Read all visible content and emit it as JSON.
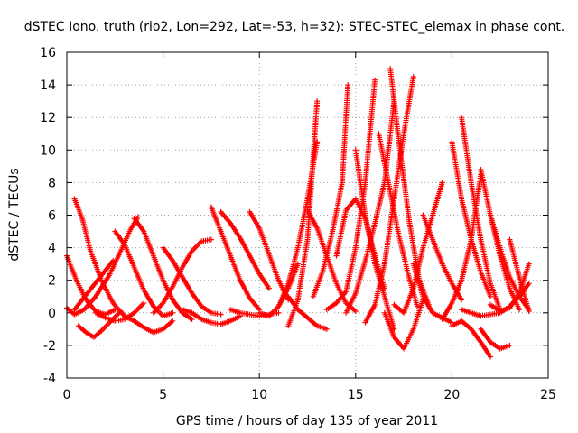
{
  "chart_data": {
    "type": "scatter",
    "title": "dSTEC Iono. truth (rio2, Lon=292, Lat=-53, h=32): STEC-STEC_elemax in phase cont.",
    "xlabel": "GPS time / hours of day 135 of year 2011",
    "ylabel": "dSTEC  / TECUs",
    "xlim": [
      0,
      25
    ],
    "ylim": [
      -4,
      16
    ],
    "xticks": [
      0,
      5,
      10,
      15,
      20,
      25
    ],
    "yticks": [
      -4,
      -2,
      0,
      2,
      4,
      6,
      8,
      10,
      12,
      14,
      16
    ],
    "grid": true,
    "marker": "+",
    "color": "#ff0000",
    "series": [
      {
        "x": [
          0.0,
          0.5,
          1.0,
          1.5,
          2.0,
          2.5
        ],
        "y": [
          3.5,
          2.0,
          0.8,
          0.1,
          -0.1,
          0.2
        ]
      },
      {
        "x": [
          0.0,
          0.4,
          0.9,
          1.5,
          2.2,
          2.8,
          3.3,
          3.7
        ],
        "y": [
          0.3,
          -0.1,
          0.2,
          1.0,
          2.3,
          3.8,
          5.1,
          5.9
        ]
      },
      {
        "x": [
          0.4,
          0.8,
          1.2,
          1.8,
          2.4,
          3.0
        ],
        "y": [
          7.0,
          5.8,
          3.9,
          2.0,
          0.6,
          -0.2
        ]
      },
      {
        "x": [
          0.6,
          1.0,
          1.4,
          1.8,
          2.3,
          2.8
        ],
        "y": [
          -0.8,
          -1.2,
          -1.5,
          -1.1,
          -0.5,
          0.1
        ]
      },
      {
        "x": [
          0.4,
          0.8,
          1.2,
          1.6,
          2.0,
          2.4
        ],
        "y": [
          0.2,
          0.8,
          1.4,
          2.0,
          2.6,
          3.2
        ]
      },
      {
        "x": [
          2.5,
          3.0,
          3.5,
          4.0,
          4.5,
          5.0,
          5.5
        ],
        "y": [
          5.0,
          4.2,
          2.8,
          1.4,
          0.4,
          -0.2,
          0.0
        ]
      },
      {
        "x": [
          1.5,
          2.0,
          2.5,
          3.0,
          3.5,
          4.0
        ],
        "y": [
          0.0,
          -0.3,
          -0.5,
          -0.4,
          0.0,
          0.6
        ]
      },
      {
        "x": [
          3.5,
          4.0,
          4.5,
          5.0,
          5.5,
          6.0,
          6.5
        ],
        "y": [
          5.8,
          5.0,
          3.5,
          2.0,
          0.8,
          0.0,
          -0.4
        ]
      },
      {
        "x": [
          3.0,
          3.5,
          4.0,
          4.5,
          5.0,
          5.5
        ],
        "y": [
          -0.2,
          -0.5,
          -0.9,
          -1.2,
          -1.0,
          -0.5
        ]
      },
      {
        "x": [
          4.5,
          5.0,
          5.5,
          6.0,
          6.5,
          7.0,
          7.5
        ],
        "y": [
          0.0,
          0.6,
          1.6,
          2.8,
          3.8,
          4.4,
          4.5
        ]
      },
      {
        "x": [
          5.0,
          5.5,
          6.0,
          6.5,
          7.0,
          7.5,
          8.0
        ],
        "y": [
          4.0,
          3.2,
          2.2,
          1.2,
          0.4,
          0.0,
          -0.1
        ]
      },
      {
        "x": [
          6.0,
          6.5,
          7.0,
          7.5,
          8.0,
          8.5,
          9.0
        ],
        "y": [
          0.2,
          0.0,
          -0.4,
          -0.6,
          -0.7,
          -0.5,
          -0.2
        ]
      },
      {
        "x": [
          7.5,
          8.0,
          8.5,
          9.0,
          9.5,
          10.0
        ],
        "y": [
          6.5,
          5.0,
          3.5,
          2.0,
          0.9,
          0.2
        ]
      },
      {
        "x": [
          8.0,
          8.5,
          9.0,
          9.5,
          10.0,
          10.5
        ],
        "y": [
          6.2,
          5.5,
          4.6,
          3.5,
          2.4,
          1.5
        ]
      },
      {
        "x": [
          8.5,
          9.0,
          9.5,
          10.0,
          10.5,
          11.0
        ],
        "y": [
          0.2,
          0.0,
          -0.1,
          -0.2,
          -0.1,
          0.0
        ]
      },
      {
        "x": [
          9.5,
          10.0,
          10.5,
          11.0,
          11.5
        ],
        "y": [
          6.2,
          5.2,
          3.6,
          2.0,
          0.8
        ]
      },
      {
        "x": [
          10.0,
          10.5,
          11.0,
          11.5,
          12.0
        ],
        "y": [
          0.0,
          -0.2,
          0.4,
          1.5,
          3.0
        ]
      },
      {
        "x": [
          11.0,
          11.5,
          12.0,
          12.5,
          13.0
        ],
        "y": [
          0.4,
          1.8,
          4.0,
          7.0,
          10.5
        ]
      },
      {
        "x": [
          11.5,
          12.0,
          12.5,
          13.0
        ],
        "y": [
          -0.8,
          0.8,
          4.5,
          13.0
        ]
      },
      {
        "x": [
          11.5,
          12.0,
          12.5,
          13.0,
          13.5
        ],
        "y": [
          1.0,
          0.2,
          -0.3,
          -0.8,
          -1.0
        ]
      },
      {
        "x": [
          12.5,
          13.0,
          13.5,
          14.0,
          14.5,
          15.0
        ],
        "y": [
          6.3,
          5.2,
          3.5,
          1.8,
          0.6,
          0.1
        ]
      },
      {
        "x": [
          12.8,
          13.3,
          13.8,
          14.3,
          14.6
        ],
        "y": [
          1.0,
          2.6,
          5.0,
          8.0,
          14.0
        ]
      },
      {
        "x": [
          13.5,
          14.0,
          14.5,
          15.0,
          15.5,
          16.0
        ],
        "y": [
          0.2,
          0.6,
          1.3,
          4.0,
          8.0,
          14.3
        ]
      },
      {
        "x": [
          14.0,
          14.5,
          15.0,
          15.5,
          16.0,
          16.5
        ],
        "y": [
          3.5,
          6.3,
          7.0,
          5.8,
          3.5,
          1.5
        ]
      },
      {
        "x": [
          14.5,
          15.0,
          15.5,
          16.0,
          16.5,
          17.0
        ],
        "y": [
          0.0,
          1.2,
          3.2,
          5.5,
          8.0,
          13.0
        ]
      },
      {
        "x": [
          15.0,
          15.5,
          16.0,
          16.5,
          17.0
        ],
        "y": [
          10.0,
          6.0,
          3.0,
          1.0,
          -1.0
        ]
      },
      {
        "x": [
          15.5,
          16.0,
          16.5,
          17.0,
          17.5,
          18.0
        ],
        "y": [
          -0.6,
          0.5,
          3.0,
          7.0,
          11.0,
          14.5
        ]
      },
      {
        "x": [
          16.2,
          16.7,
          17.2,
          17.7,
          18.2
        ],
        "y": [
          11.0,
          8.0,
          5.0,
          2.5,
          0.4
        ]
      },
      {
        "x": [
          16.5,
          17.0,
          17.5,
          18.0,
          18.5
        ],
        "y": [
          0.0,
          -1.5,
          -2.2,
          -1.0,
          0.8
        ]
      },
      {
        "x": [
          16.8,
          17.3,
          17.8,
          18.3,
          18.8
        ],
        "y": [
          15.0,
          10.0,
          5.5,
          2.0,
          0.5
        ]
      },
      {
        "x": [
          17.0,
          17.5,
          18.0,
          18.5,
          19.0,
          19.5
        ],
        "y": [
          0.5,
          0.0,
          1.5,
          4.0,
          6.0,
          8.0
        ]
      },
      {
        "x": [
          18.0,
          18.5,
          19.0,
          19.5,
          20.0
        ],
        "y": [
          3.0,
          1.0,
          0.0,
          -0.3,
          -0.6
        ]
      },
      {
        "x": [
          18.5,
          19.0,
          19.5,
          20.0,
          20.5
        ],
        "y": [
          6.0,
          4.5,
          3.0,
          1.8,
          0.8
        ]
      },
      {
        "x": [
          19.5,
          20.0,
          20.5,
          21.0,
          21.5
        ],
        "y": [
          -0.4,
          0.6,
          2.0,
          4.5,
          8.5
        ]
      },
      {
        "x": [
          20.0,
          20.5,
          21.0,
          21.5,
          22.0
        ],
        "y": [
          10.5,
          7.0,
          4.5,
          2.5,
          1.0
        ]
      },
      {
        "x": [
          20.5,
          21.0,
          21.5,
          22.0,
          22.5
        ],
        "y": [
          12.0,
          8.0,
          4.5,
          1.8,
          0.2
        ]
      },
      {
        "x": [
          20.0,
          20.5,
          21.0,
          21.5,
          22.0
        ],
        "y": [
          -0.8,
          -0.5,
          -1.0,
          -1.8,
          -2.7
        ]
      },
      {
        "x": [
          21.5,
          22.0,
          22.5,
          23.0
        ],
        "y": [
          -1.0,
          -1.8,
          -2.2,
          -2.0
        ]
      },
      {
        "x": [
          21.5,
          22.0,
          22.5,
          23.0,
          23.5
        ],
        "y": [
          8.8,
          6.0,
          3.5,
          1.5,
          0.2
        ]
      },
      {
        "x": [
          22.0,
          22.5,
          23.0,
          23.5,
          24.0
        ],
        "y": [
          6.0,
          4.0,
          2.2,
          1.0,
          0.2
        ]
      },
      {
        "x": [
          22.0,
          22.5,
          23.0,
          23.5,
          24.0
        ],
        "y": [
          0.5,
          0.1,
          0.3,
          1.2,
          3.0
        ]
      },
      {
        "x": [
          23.0,
          23.5,
          24.0
        ],
        "y": [
          4.5,
          2.2,
          0.1
        ]
      },
      {
        "x": [
          20.5,
          21.0,
          21.5,
          22.0,
          22.5,
          23.0,
          23.5,
          24.0
        ],
        "y": [
          0.2,
          0.0,
          -0.2,
          -0.1,
          0.0,
          0.4,
          1.0,
          1.8
        ]
      }
    ]
  }
}
